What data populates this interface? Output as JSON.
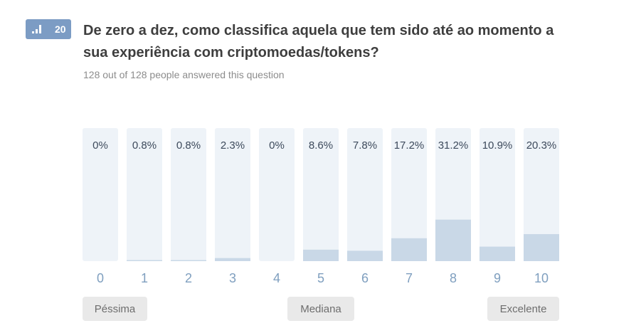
{
  "question": {
    "number": "20",
    "title": "De zero a dez, como classifica aquela que tem sido até ao momento a sua experiência com criptomoedas/tokens?",
    "answered_text": "128 out of 128 people answered this question"
  },
  "scale_labels": {
    "low": "Péssima",
    "mid": "Mediana",
    "high": "Excelente"
  },
  "colors": {
    "badge": "#7c9cc4",
    "bar_background": "#eef3f8",
    "bar_fill": "#c9d8e7",
    "value_text": "#3d4a5c",
    "category_text": "#7f9fbf"
  },
  "chart_data": {
    "type": "bar",
    "categories": [
      "0",
      "1",
      "2",
      "3",
      "4",
      "5",
      "6",
      "7",
      "8",
      "9",
      "10"
    ],
    "values": [
      0,
      0.8,
      0.8,
      2.3,
      0,
      8.6,
      7.8,
      17.2,
      31.2,
      10.9,
      20.3
    ],
    "value_labels": [
      "0%",
      "0.8%",
      "0.8%",
      "2.3%",
      "0%",
      "8.6%",
      "7.8%",
      "17.2%",
      "31.2%",
      "10.9%",
      "20.3%"
    ],
    "ylim": [
      0,
      100
    ],
    "grid": false,
    "legend": "none"
  }
}
